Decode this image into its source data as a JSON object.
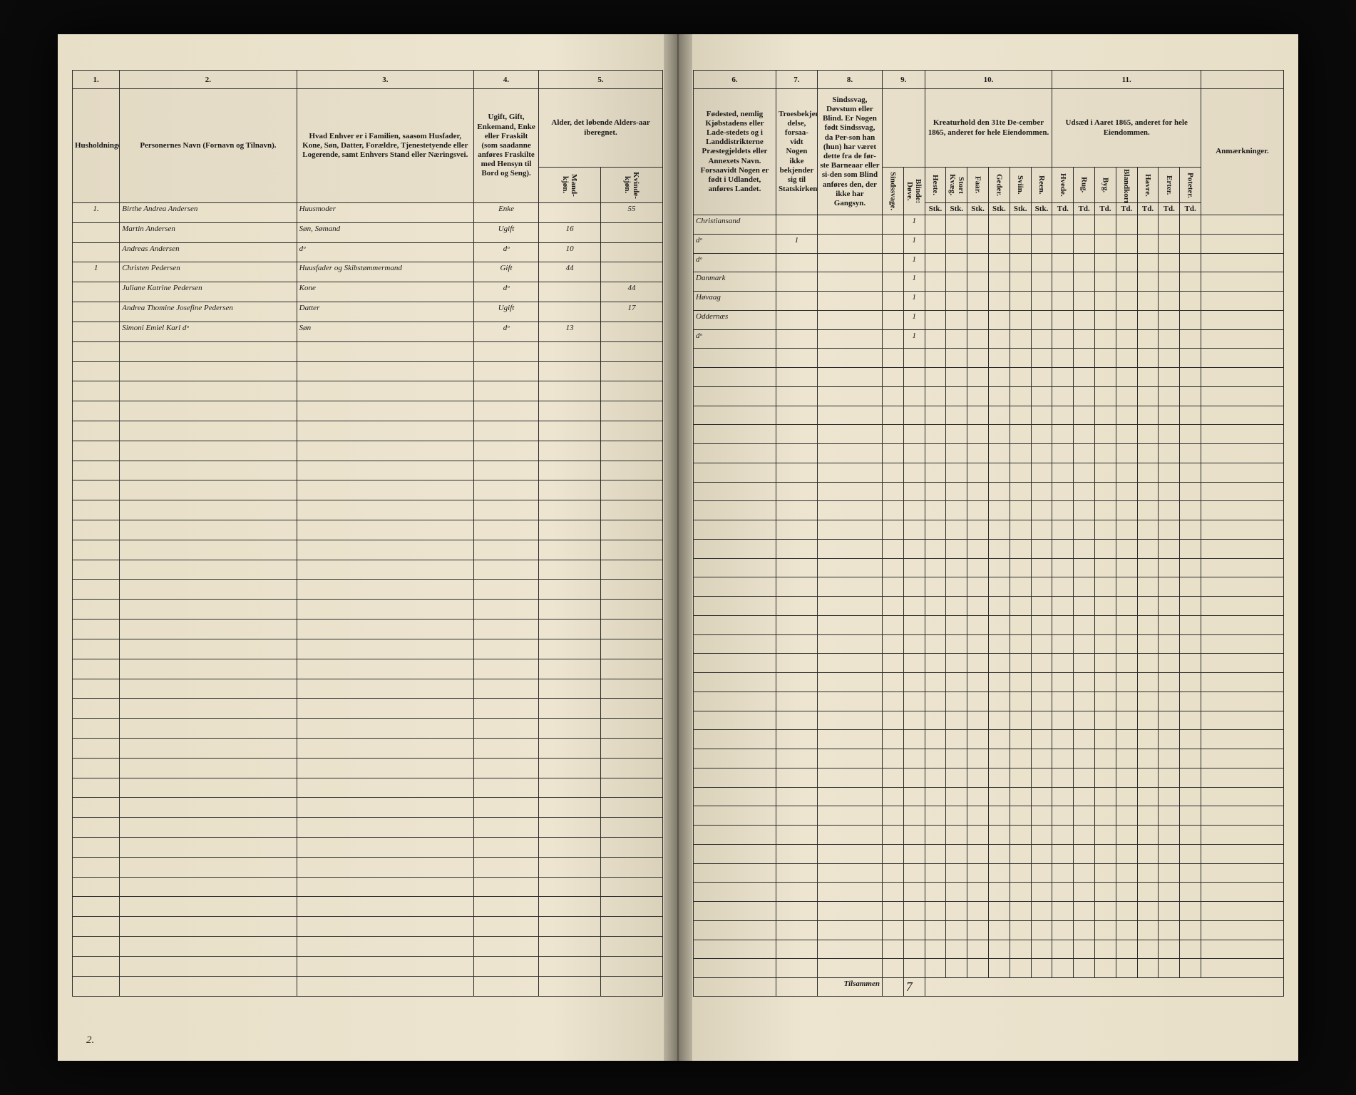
{
  "colors": {
    "paper": "#ede5d0",
    "ink": "#1a1a1a",
    "script_ink": "#3a2a1a",
    "rule": "#2a2a2a",
    "background": "#0a0a0a"
  },
  "typography": {
    "header_print_size_pt": 10,
    "colnum_size_pt": 14,
    "script_size_pt": 15,
    "script_family": "cursive"
  },
  "left_page": {
    "col_numbers": [
      "1.",
      "2.",
      "3.",
      "4.",
      "5."
    ],
    "col_headers": [
      "Husholdninger.",
      "Personernes Navn (Fornavn og Tilnavn).",
      "Hvad Enhver er i Familien, saasom Husfader, Kone, Søn, Datter, Forældre, Tjenestetyende eller Logerende, samt Enhvers Stand eller Næringsvei.",
      "Ugift, Gift, Enkemand, Enke eller Fraskilt (som saadanne anføres Fraskilte med Hensyn til Bord og Seng).",
      "Alder, det løbende Alders-aar iberegnet."
    ],
    "sub_headers_5": [
      "Mand-kjøn.",
      "Kvinde-kjøn."
    ],
    "col_widths_pct": [
      8,
      30,
      30,
      10,
      22
    ],
    "footer_left": "2.",
    "rows": [
      {
        "household": "1.",
        "name": "Birthe Andrea Andersen",
        "role": "Huusmoder",
        "status": "Enke",
        "age_m": "",
        "age_f": "55"
      },
      {
        "household": "",
        "name": "Martin Andersen",
        "role": "Søn, Sømand",
        "status": "Ugift",
        "age_m": "16",
        "age_f": ""
      },
      {
        "household": "",
        "name": "Andreas Andersen",
        "role": "dᵒ",
        "status": "dᵒ",
        "age_m": "10",
        "age_f": ""
      },
      {
        "household": "1",
        "name": "Christen Pedersen",
        "role": "Huusfader og Skibstømmermand",
        "status": "Gift",
        "age_m": "44",
        "age_f": ""
      },
      {
        "household": "",
        "name": "Juliane Katrine Pedersen",
        "role": "Kone",
        "status": "dᵒ",
        "age_m": "",
        "age_f": "44"
      },
      {
        "household": "",
        "name": "Andrea Thomine Josefine Pedersen",
        "role": "Datter",
        "status": "Ugift",
        "age_m": "",
        "age_f": "17"
      },
      {
        "household": "",
        "name": "Simoni Emiel Karl dᵒ",
        "role": "Søn",
        "status": "dᵒ",
        "age_m": "13",
        "age_f": ""
      }
    ],
    "empty_rows": 33
  },
  "right_page": {
    "col_numbers": [
      "6.",
      "7.",
      "8.",
      "9.",
      "10.",
      "11.",
      ""
    ],
    "col_headers": [
      "Fødested, nemlig Kjøbstadens eller Lade-stedets og i Landdistrikterne Præstegjeldets eller Annexets Navn. Forsaavidt Nogen er født i Udlandet, anføres Landet.",
      "Troesbekjen-delse, forsaa-vidt Nogen ikke bekjender sig til Statskirken.",
      "Sindssvag, Døvstum eller Blind. Er Nogen født Sindssvag, da Per-son han (hun) har været dette fra de før-ste Barneaar eller si-den som Blind anføres den, der ikke har Gangsyn.",
      "",
      "Kreaturhold den 31te De-cember 1865, anderet for hele Eiendommen.",
      "Udsæd i Aaret 1865, anderet for hele Eiendommen.",
      "Anmærkninger."
    ],
    "sub_headers_9": [
      "Sindssvage.",
      "Blinde: Døve."
    ],
    "sub_headers_10": [
      "Heste.",
      "Stort Kvæg.",
      "Faar.",
      "Geder.",
      "Sviin.",
      "Reen."
    ],
    "sub_headers_10b": [
      "Stk.",
      "Stk.",
      "Stk.",
      "Stk.",
      "Stk.",
      "Stk."
    ],
    "sub_headers_11": [
      "Hvede.",
      "Rug.",
      "Byg.",
      "Blandkorn.",
      "Havre.",
      "Erter.",
      "Poteter."
    ],
    "sub_headers_11b": [
      "Td.",
      "Td.",
      "Td.",
      "Td.",
      "Td.",
      "Td.",
      "Td."
    ],
    "footer_label": "Tilsammen",
    "footer_total": "7",
    "rows": [
      {
        "birthplace": "Christiansand",
        "c7": "",
        "c8": "",
        "c9a": "",
        "c9b": "1"
      },
      {
        "birthplace": "dᵒ",
        "c7": "1",
        "c8": "",
        "c9a": "",
        "c9b": "1"
      },
      {
        "birthplace": "dᵒ",
        "c7": "",
        "c8": "",
        "c9a": "",
        "c9b": "1"
      },
      {
        "birthplace": "Danmark",
        "c7": "",
        "c8": "",
        "c9a": "",
        "c9b": "1"
      },
      {
        "birthplace": "Høvaag",
        "c7": "",
        "c8": "",
        "c9a": "",
        "c9b": "1"
      },
      {
        "birthplace": "Oddernæs",
        "c7": "",
        "c8": "",
        "c9a": "",
        "c9b": "1"
      },
      {
        "birthplace": "dᵒ",
        "c7": "",
        "c8": "",
        "c9a": "",
        "c9b": "1"
      }
    ],
    "empty_rows": 33
  }
}
